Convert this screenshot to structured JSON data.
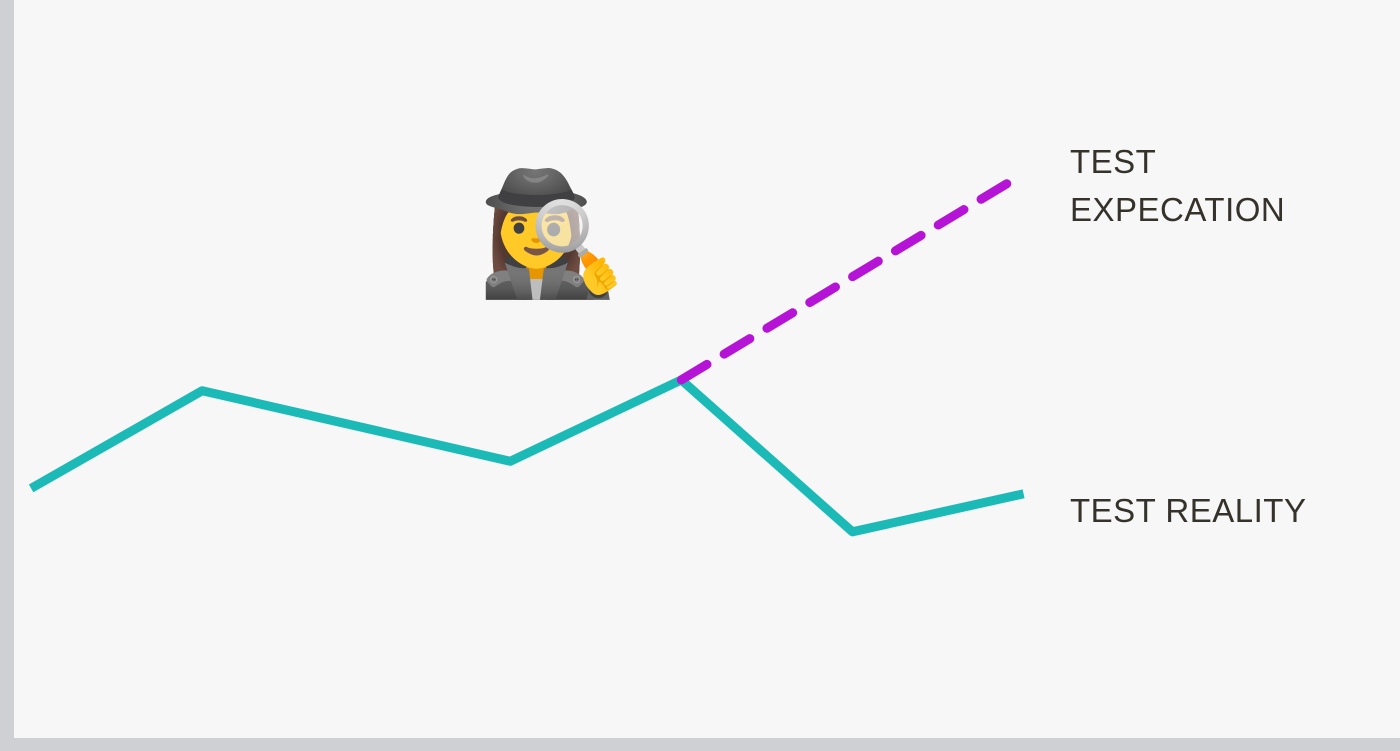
{
  "chart_data": {
    "type": "line",
    "title": "",
    "xlabel": "",
    "ylabel": "",
    "grid": false,
    "axes": {
      "x_ticks": false,
      "y_ticks": false
    },
    "series": [
      {
        "name": "TEST REALITY",
        "style": "solid",
        "color": "#1cbab7",
        "points": [
          [
            0,
            46
          ],
          [
            10,
            64
          ],
          [
            28,
            51
          ],
          [
            38,
            66
          ],
          [
            48,
            38
          ],
          [
            58,
            45
          ]
        ]
      },
      {
        "name": "TEST EXPECATION",
        "style": "dashed",
        "color": "#b514d6",
        "points": [
          [
            38,
            66
          ],
          [
            58,
            104
          ]
        ]
      }
    ],
    "xlim": [
      -1,
      80
    ],
    "ylim": [
      0,
      136
    ],
    "annotation": {
      "type": "emoji",
      "icon": "detective-icon",
      "glyph": "🕵️‍♀️"
    },
    "labels": {
      "expectation": [
        "TEST",
        "EXPECATION"
      ],
      "reality": "TEST REALITY"
    }
  }
}
